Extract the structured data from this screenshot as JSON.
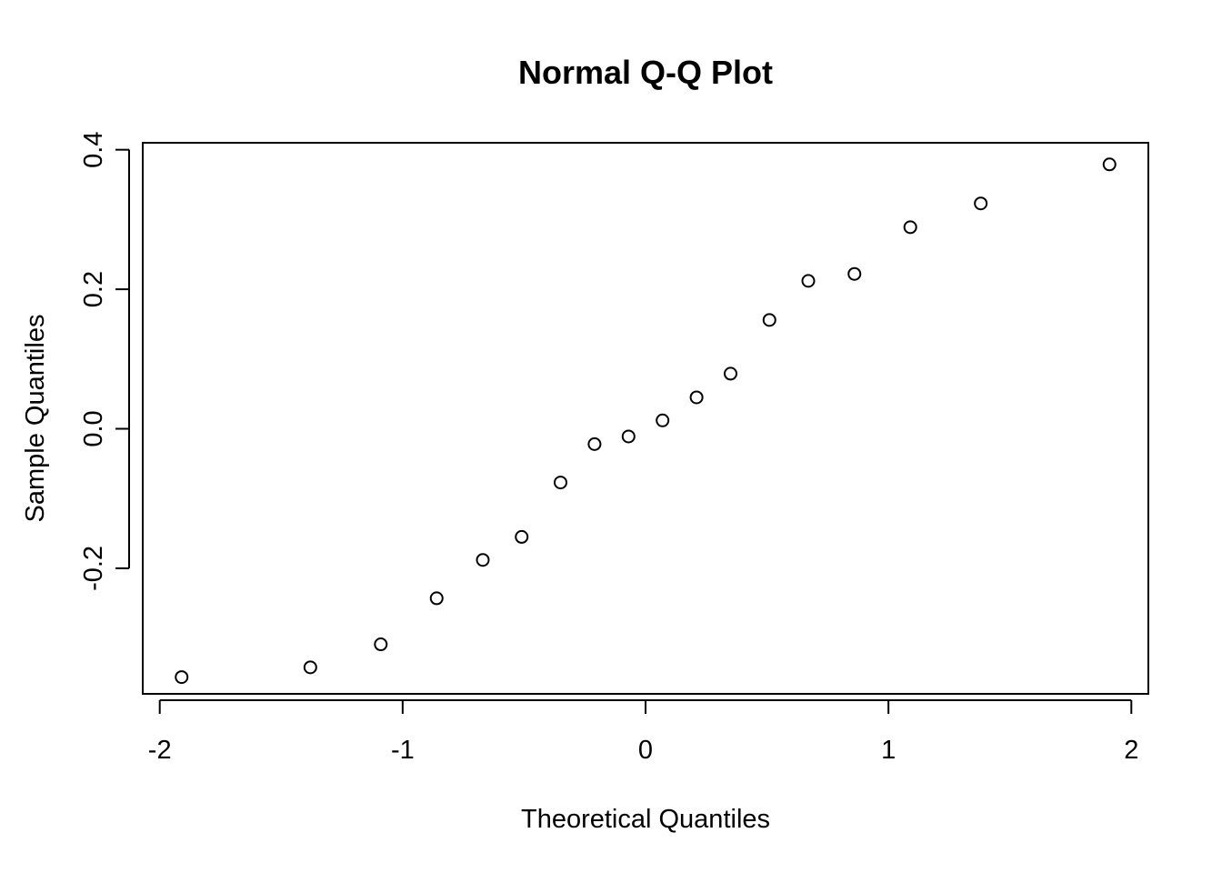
{
  "chart_data": {
    "type": "scatter",
    "title": "Normal Q-Q Plot",
    "xlabel": "Theoretical Quantiles",
    "ylabel": "Sample Quantiles",
    "xlim": [
      -2.07,
      2.07
    ],
    "ylim": [
      -0.38,
      0.41
    ],
    "x_ticks": [
      -2,
      -1,
      0,
      1,
      2
    ],
    "x_tick_labels": [
      "-2",
      "-1",
      "0",
      "1",
      "2"
    ],
    "y_ticks": [
      -0.2,
      0.0,
      0.2,
      0.4
    ],
    "y_tick_labels": [
      "-0.2",
      "0.0",
      "0.2",
      "0.4"
    ],
    "grid": false,
    "legend": "none",
    "point_style": "open-circle",
    "x": [
      -1.91,
      -1.38,
      -1.09,
      -0.86,
      -0.67,
      -0.51,
      -0.35,
      -0.21,
      -0.07,
      0.07,
      0.21,
      0.35,
      0.51,
      0.67,
      0.86,
      1.09,
      1.38,
      1.91
    ],
    "y": [
      -0.356,
      -0.342,
      -0.309,
      -0.243,
      -0.188,
      -0.155,
      -0.077,
      -0.022,
      -0.011,
      0.012,
      0.045,
      0.079,
      0.156,
      0.212,
      0.222,
      0.289,
      0.323,
      0.379
    ]
  }
}
